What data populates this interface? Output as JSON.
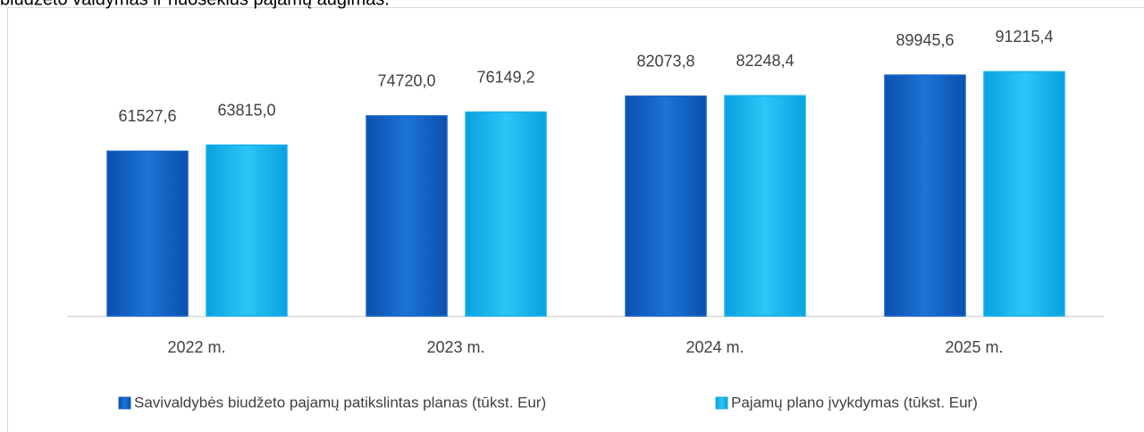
{
  "chart_data": {
    "type": "bar",
    "title": "biudžeto valdymas ir nuoseklus pajamų augimas.",
    "categories": [
      "2022 m.",
      "2023 m.",
      "2024 m.",
      "2025 m."
    ],
    "series": [
      {
        "name": "Savivaldybės biudžeto pajamų patikslintas planas (tūkst. Eur)",
        "color": "#1565c9",
        "values": [
          61527.6,
          74720.0,
          82073.8,
          89945.6
        ],
        "value_labels": [
          "61527,6",
          "74720,0",
          "82073,8",
          "89945,6"
        ]
      },
      {
        "name": "Pajamų plano įvykdymas (tūkst. Eur)",
        "color": "#16b2ee",
        "values": [
          63815.0,
          76149.2,
          82248.4,
          91215.4
        ],
        "value_labels": [
          "63815,0",
          "76149,2",
          "82248,4",
          "91215,4"
        ]
      }
    ],
    "ylim": [
      0,
      100000
    ]
  }
}
